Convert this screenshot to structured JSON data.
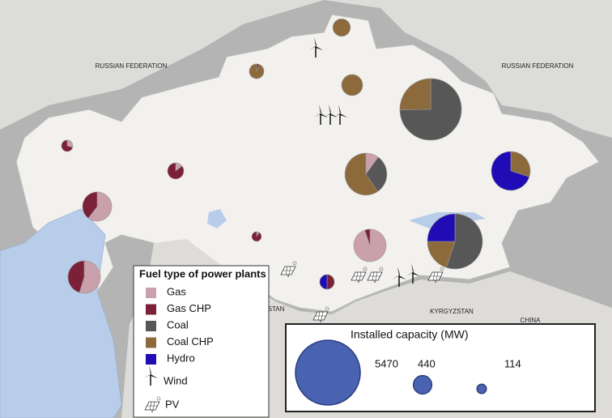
{
  "map_labels": [
    "RUSSIAN FEDERATION",
    "RUSSIAN FEDERATION",
    "KYRGYZSTAN",
    "CHINA",
    "STAN"
  ],
  "fuel_legend": {
    "title": "Fuel type of power plants",
    "fuels": [
      {
        "name": "Gas",
        "color": "#c9a0ab"
      },
      {
        "name": "Gas CHP",
        "color": "#7b2036"
      },
      {
        "name": "Coal",
        "color": "#575757"
      },
      {
        "name": "Coal CHP",
        "color": "#8c6a3c"
      },
      {
        "name": "Hydro",
        "color": "#1f0cb5"
      }
    ],
    "wind": "Wind",
    "pv": "PV"
  },
  "capacity_legend": {
    "title": "Installed capacity (MW)",
    "color": "#4a63b0",
    "values": [
      5470,
      440,
      114
    ]
  },
  "plants": [
    {
      "values": [
        0,
        0,
        0,
        400,
        0
      ]
    },
    {
      "values": [
        0,
        15,
        0,
        265,
        0
      ]
    },
    {
      "values": [
        0,
        0,
        0,
        580,
        0
      ]
    },
    {
      "values": [
        0,
        0,
        3700,
        1250,
        0
      ]
    },
    {
      "values": [
        50,
        120,
        0,
        0,
        0
      ]
    },
    {
      "values": [
        50,
        290,
        0,
        0,
        0
      ]
    },
    {
      "values": [
        230,
        0,
        700,
        1370,
        0
      ]
    },
    {
      "values": [
        0,
        0,
        0,
        590,
        1380
      ]
    },
    {
      "values": [
        670,
        440,
        0,
        0,
        0
      ]
    },
    {
      "values": [
        10,
        110,
        0,
        0,
        0
      ]
    },
    {
      "values": [
        1300,
        70,
        0,
        0,
        0
      ]
    },
    {
      "values": [
        0,
        0,
        2180,
        790,
        990
      ]
    },
    {
      "values": [
        750,
        620,
        0,
        0,
        0
      ]
    },
    {
      "values": [
        0,
        140,
        0,
        0,
        140
      ]
    }
  ]
}
